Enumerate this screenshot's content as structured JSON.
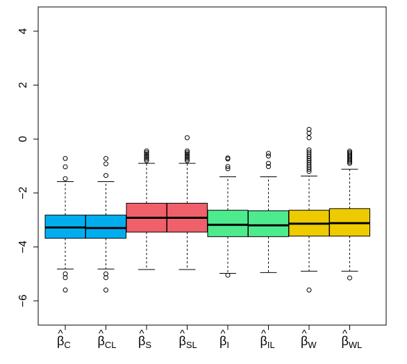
{
  "chart_data": {
    "type": "box",
    "title": "",
    "xlabel": "",
    "ylabel": "",
    "ylim": [
      -6.9,
      4.9
    ],
    "yticks": [
      -6,
      -4,
      -2,
      0,
      2,
      4
    ],
    "ytick_labels": [
      "−6",
      "−4",
      "−2",
      "0",
      "2",
      "4"
    ],
    "grid": false,
    "categories": [
      {
        "base": "β",
        "sub": "C"
      },
      {
        "base": "β",
        "sub": "CL"
      },
      {
        "base": "β",
        "sub": "S"
      },
      {
        "base": "β",
        "sub": "SL"
      },
      {
        "base": "β",
        "sub": "I"
      },
      {
        "base": "β",
        "sub": "IL"
      },
      {
        "base": "β",
        "sub": "W"
      },
      {
        "base": "β",
        "sub": "WL"
      }
    ],
    "colors": [
      "#00AEEF",
      "#00AEEF",
      "#F0606A",
      "#F0606A",
      "#4DEB8E",
      "#4DEB8E",
      "#EDCB00",
      "#EDCB00"
    ],
    "boxes": [
      {
        "whisker_low": -4.82,
        "q1": -3.68,
        "median": -3.28,
        "q3": -2.82,
        "whisker_high": -1.58,
        "outliers": [
          -0.72,
          -1.03,
          -1.47,
          -5.0,
          -5.14,
          -5.6
        ]
      },
      {
        "whisker_low": -4.82,
        "q1": -3.68,
        "median": -3.3,
        "q3": -2.82,
        "whisker_high": -1.58,
        "outliers": [
          -0.72,
          -0.92,
          -1.35,
          -5.0,
          -5.14,
          -5.6
        ]
      },
      {
        "whisker_low": -4.84,
        "q1": -3.45,
        "median": -2.92,
        "q3": -2.38,
        "whisker_high": -0.9,
        "outliers": [
          -0.44,
          -0.5,
          -0.56,
          -0.62,
          -0.68,
          -0.74,
          -0.8
        ]
      },
      {
        "whisker_low": -4.84,
        "q1": -3.45,
        "median": -2.92,
        "q3": -2.38,
        "whisker_high": -0.9,
        "outliers": [
          0.05,
          -0.44,
          -0.5,
          -0.56,
          -0.62,
          -0.68,
          -0.74,
          -0.8
        ]
      },
      {
        "whisker_low": -4.98,
        "q1": -3.62,
        "median": -3.18,
        "q3": -2.64,
        "whisker_high": -1.4,
        "outliers": [
          -0.7,
          -0.74,
          -1.02,
          -1.1,
          -5.05
        ]
      },
      {
        "whisker_low": -4.95,
        "q1": -3.62,
        "median": -3.2,
        "q3": -2.66,
        "whisker_high": -1.4,
        "outliers": [
          -0.53,
          -0.63,
          -0.9,
          -1.02
        ]
      },
      {
        "whisker_low": -4.9,
        "q1": -3.6,
        "median": -3.14,
        "q3": -2.64,
        "whisker_high": -1.37,
        "outliers": [
          0.36,
          0.22,
          0.05,
          -0.4,
          -0.48,
          -0.56,
          -0.64,
          -0.72,
          -0.8,
          -0.88,
          -0.96,
          -1.04,
          -1.12,
          -1.2,
          -5.6
        ]
      },
      {
        "whisker_low": -4.9,
        "q1": -3.6,
        "median": -3.12,
        "q3": -2.58,
        "whisker_high": -1.12,
        "outliers": [
          -0.45,
          -0.5,
          -0.55,
          -0.6,
          -0.65,
          -0.7,
          -0.75,
          -0.8,
          -0.85,
          -0.9,
          -5.15
        ]
      }
    ]
  }
}
